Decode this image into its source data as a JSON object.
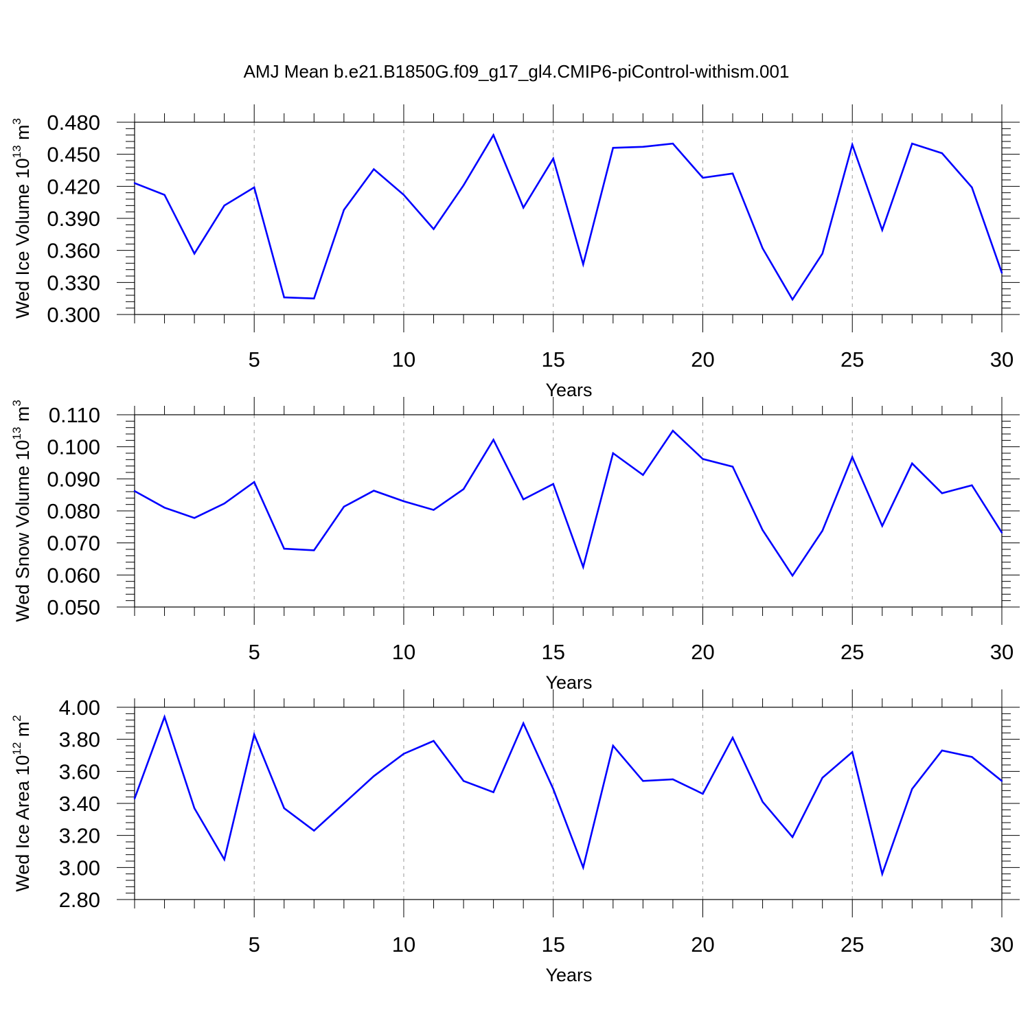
{
  "title": "AMJ Mean b.e21.B1850G.f09_g17_gl4.CMIP6-piControl-withism.001",
  "colors": {
    "line": "#0000ff",
    "axis": "#000000",
    "grid": "#999999"
  },
  "chart_data": [
    {
      "type": "line",
      "ylabel_main": "Wed Ice Volume 10",
      "ylabel_exp": "13",
      "ylabel_unit": " m",
      "ylabel_unit_exp": "3",
      "xlabel": "Years",
      "xlim": [
        1,
        30
      ],
      "ylim": [
        0.3,
        0.48
      ],
      "yticks": [
        "0.300",
        "0.330",
        "0.360",
        "0.390",
        "0.420",
        "0.450",
        "0.480"
      ],
      "xticks": [
        "5",
        "10",
        "15",
        "20",
        "25",
        "30"
      ],
      "grid": "vertical dashed at major x ticks",
      "series": [
        {
          "x": [
            1,
            2,
            3,
            4,
            5,
            6,
            7,
            8,
            9,
            10,
            11,
            12,
            13,
            14,
            15,
            16,
            17,
            18,
            19,
            20,
            21,
            22,
            23,
            24,
            25,
            26,
            27,
            28,
            29,
            30
          ],
          "values": [
            0.423,
            0.412,
            0.357,
            0.402,
            0.419,
            0.316,
            0.315,
            0.398,
            0.436,
            0.412,
            0.38,
            0.421,
            0.468,
            0.4,
            0.446,
            0.347,
            0.456,
            0.457,
            0.46,
            0.428,
            0.432,
            0.362,
            0.314,
            0.357,
            0.459,
            0.379,
            0.46,
            0.451,
            0.419,
            0.339
          ]
        }
      ]
    },
    {
      "type": "line",
      "ylabel_main": "Wed Snow Volume 10",
      "ylabel_exp": "13",
      "ylabel_unit": " m",
      "ylabel_unit_exp": "3",
      "xlabel": "Years",
      "xlim": [
        1,
        30
      ],
      "ylim": [
        0.05,
        0.11
      ],
      "yticks": [
        "0.050",
        "0.060",
        "0.070",
        "0.080",
        "0.090",
        "0.100",
        "0.110"
      ],
      "xticks": [
        "5",
        "10",
        "15",
        "20",
        "25",
        "30"
      ],
      "grid": "vertical dashed at major x ticks",
      "series": [
        {
          "x": [
            1,
            2,
            3,
            4,
            5,
            6,
            7,
            8,
            9,
            10,
            11,
            12,
            13,
            14,
            15,
            16,
            17,
            18,
            19,
            20,
            21,
            22,
            23,
            24,
            25,
            26,
            27,
            28,
            29,
            30
          ],
          "values": [
            0.0862,
            0.081,
            0.0778,
            0.0823,
            0.089,
            0.0682,
            0.0677,
            0.0813,
            0.0863,
            0.083,
            0.0803,
            0.0868,
            0.1022,
            0.0836,
            0.0884,
            0.0625,
            0.098,
            0.0912,
            0.105,
            0.0962,
            0.0938,
            0.074,
            0.0598,
            0.0738,
            0.0968,
            0.0753,
            0.0948,
            0.0855,
            0.088,
            0.0732
          ]
        }
      ]
    },
    {
      "type": "line",
      "ylabel_main": "Wed Ice Area 10",
      "ylabel_exp": "12",
      "ylabel_unit": " m",
      "ylabel_unit_exp": "2",
      "xlabel": "Years",
      "xlim": [
        1,
        30
      ],
      "ylim": [
        2.8,
        4.0
      ],
      "yticks": [
        "2.80",
        "3.00",
        "3.20",
        "3.40",
        "3.60",
        "3.80",
        "4.00"
      ],
      "xticks": [
        "5",
        "10",
        "15",
        "20",
        "25",
        "30"
      ],
      "grid": "vertical dashed at major x ticks",
      "series": [
        {
          "x": [
            1,
            2,
            3,
            4,
            5,
            6,
            7,
            8,
            9,
            10,
            11,
            12,
            13,
            14,
            15,
            16,
            17,
            18,
            19,
            20,
            21,
            22,
            23,
            24,
            25,
            26,
            27,
            28,
            29,
            30
          ],
          "values": [
            3.43,
            3.94,
            3.37,
            3.05,
            3.83,
            3.37,
            3.23,
            3.4,
            3.57,
            3.71,
            3.79,
            3.54,
            3.47,
            3.9,
            3.49,
            3.0,
            3.76,
            3.54,
            3.55,
            3.46,
            3.81,
            3.41,
            3.19,
            3.56,
            3.72,
            2.96,
            3.49,
            3.73,
            3.69,
            3.54
          ]
        }
      ]
    }
  ]
}
